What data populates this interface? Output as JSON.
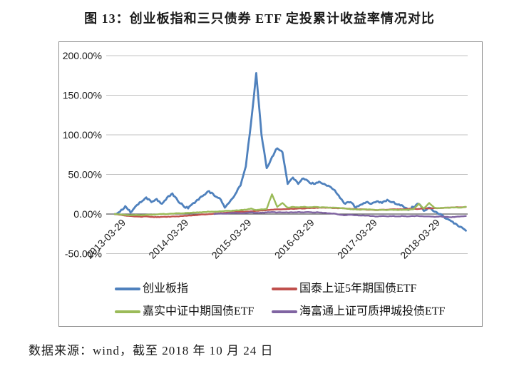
{
  "figure": {
    "title": "图 13：创业板指和三只债券 ETF 定投累计收益率情况对比",
    "source_note": "数据来源：wind，截至 2018 年 10 月 24 日"
  },
  "chart_data": {
    "type": "line",
    "title": "图 13：创业板指和三只债券 ETF 定投累计收益率情况对比",
    "x_unit": "month",
    "x_start": "2013-03-29",
    "x_end": "2018-10-24",
    "x_tick_labels": [
      "2013-03-29",
      "2014-03-29",
      "2015-03-29",
      "2016-03-29",
      "2017-03-29",
      "2018-03-29"
    ],
    "x_tick_month_index": [
      0,
      12,
      24,
      36,
      48,
      60
    ],
    "y_axis": {
      "min": -50,
      "max": 200,
      "unit": "%",
      "tick_values": [
        200,
        150,
        100,
        50,
        0,
        -50
      ],
      "tick_labels": [
        "200.00%",
        "150.00%",
        "100.00%",
        "50.00%",
        "0.00%",
        "-50.00%"
      ]
    },
    "grid": "horizontal",
    "legend_position": "bottom-two-columns",
    "colors": {
      "gridline": "#c3c3c3",
      "zero_axis": "#5a5a5a",
      "border": "#8f8f8f",
      "text": "#1a1a1a",
      "blue": "#4F81BD",
      "red": "#C0504D",
      "green": "#9BBB59",
      "purple": "#8064A2"
    },
    "series": [
      {
        "name": "创业板指",
        "color": "#4F81BD",
        "unit": "%",
        "start_month": 0,
        "values": [
          0,
          3,
          10,
          2,
          10,
          15,
          21,
          15,
          19,
          13,
          21,
          26,
          17,
          11,
          7,
          14,
          18,
          24,
          29,
          23,
          20,
          8,
          16,
          25,
          36,
          60,
          115,
          178,
          100,
          58,
          72,
          83,
          78,
          38,
          46,
          38,
          45,
          41,
          38,
          41,
          38,
          35,
          30,
          20,
          13,
          15,
          8,
          12,
          15,
          13,
          16,
          14,
          18,
          15,
          12,
          10,
          5,
          9,
          13,
          4,
          8,
          3,
          0,
          -5,
          -8,
          -12,
          -16,
          -21
        ]
      },
      {
        "name": "国泰上证5年期国债ETF",
        "color": "#C0504D",
        "unit": "%",
        "start_month": 0,
        "values": [
          0,
          -1,
          -2,
          -2.5,
          -3,
          -3.5,
          -3,
          -3.5,
          -4,
          -3.5,
          -3.5,
          -3,
          -3,
          -2.5,
          -2,
          -1.5,
          -1,
          -0.5,
          0,
          0.5,
          1,
          1.5,
          2,
          2.5,
          3,
          3,
          3.5,
          4,
          4.5,
          5,
          5.5,
          6,
          6,
          6.5,
          6.5,
          7,
          7,
          7.5,
          7.5,
          8,
          8,
          8,
          7.5,
          7.5,
          7,
          6.5,
          6,
          6,
          5.5,
          5.5,
          5,
          5.5,
          5.5,
          6,
          6,
          6,
          6.5,
          6.5,
          6.5,
          7,
          7,
          7.5,
          7.5,
          8,
          8,
          8.5,
          8.5,
          9
        ]
      },
      {
        "name": "嘉实中证中期国债ETF",
        "color": "#9BBB59",
        "unit": "%",
        "start_month": 0,
        "values": [
          0,
          -0.5,
          -1,
          -1.5,
          -1,
          -1.5,
          -1,
          -1,
          -0.5,
          0,
          0,
          0.5,
          1,
          1,
          1.5,
          2,
          2,
          2.5,
          3,
          3,
          3.5,
          4,
          4,
          4.5,
          5,
          5.5,
          7,
          5,
          6,
          6.5,
          25,
          9,
          14,
          8,
          9,
          8.5,
          9,
          8.5,
          9,
          8.5,
          8.5,
          8,
          8,
          7.5,
          7,
          6,
          6,
          5.5,
          6,
          5.5,
          5,
          5.5,
          5,
          5.5,
          5,
          5.5,
          5.5,
          6,
          13,
          7,
          14,
          8,
          7.5,
          8,
          8,
          8.5,
          8,
          9
        ]
      },
      {
        "name": "海富通上证可质押城投债ETF",
        "color": "#8064A2",
        "unit": "%",
        "start_month": 19,
        "values": [
          0,
          0.5,
          0.5,
          1,
          1.5,
          1,
          1.5,
          2,
          1.5,
          1.5,
          2,
          2.5,
          2,
          2,
          2,
          2,
          2.5,
          2,
          2.5,
          2,
          2,
          1.5,
          1,
          0.5,
          -1,
          -1.5,
          -1,
          -1.5,
          -2,
          -2,
          -2.5,
          -3,
          -2.5,
          -3,
          -2.5,
          -3,
          -2.5,
          -3,
          -2.5,
          -2.5,
          -3,
          -3,
          -3.5,
          -3,
          -3.5,
          -4,
          -3.5,
          -3,
          -2.5
        ]
      }
    ]
  }
}
